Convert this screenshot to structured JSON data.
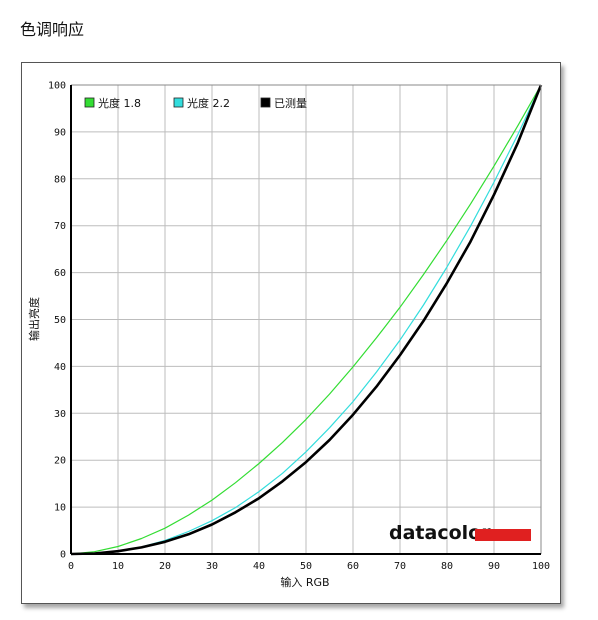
{
  "page": {
    "title": "色调响应"
  },
  "brand": {
    "text": "datacolor",
    "bar_color": "#e02020"
  },
  "chart_data": {
    "type": "line",
    "title": "",
    "xlabel": "输入 RGB",
    "ylabel": "输出亮度",
    "xlim": [
      0,
      100
    ],
    "ylim": [
      0,
      100
    ],
    "xticks": [
      "0",
      "10",
      "20",
      "30",
      "40",
      "50",
      "60",
      "70",
      "80",
      "90",
      "100"
    ],
    "yticks": [
      "0",
      "10",
      "20",
      "30",
      "40",
      "50",
      "60",
      "70",
      "80",
      "90",
      "100"
    ],
    "grid": true,
    "legend_position": "top-left",
    "x": [
      0,
      5,
      10,
      15,
      20,
      25,
      30,
      35,
      40,
      45,
      50,
      55,
      60,
      65,
      70,
      75,
      80,
      85,
      90,
      95,
      100
    ],
    "series": [
      {
        "name": "光度 1.8",
        "color": "#33dd33",
        "y": [
          0,
          0.5,
          1.6,
          3.3,
          5.5,
          8.3,
          11.5,
          15.2,
          19.3,
          23.8,
          28.7,
          34.1,
          39.9,
          46.1,
          52.6,
          59.6,
          66.9,
          74.6,
          82.7,
          91.2,
          100
        ]
      },
      {
        "name": "光度 2.2",
        "color": "#33dddd",
        "y": [
          0,
          0.1,
          0.6,
          1.5,
          2.9,
          4.8,
          7.1,
          9.9,
          13.3,
          17.2,
          21.8,
          26.9,
          32.5,
          38.8,
          45.6,
          53.1,
          61.2,
          69.9,
          79.3,
          89.3,
          100
        ]
      },
      {
        "name": "已测量",
        "color": "#000000",
        "y": [
          0,
          0.1,
          0.6,
          1.4,
          2.6,
          4.2,
          6.3,
          8.9,
          11.9,
          15.5,
          19.6,
          24.3,
          29.7,
          35.7,
          42.4,
          49.7,
          57.8,
          66.6,
          76.6,
          87.5,
          100
        ]
      }
    ]
  }
}
